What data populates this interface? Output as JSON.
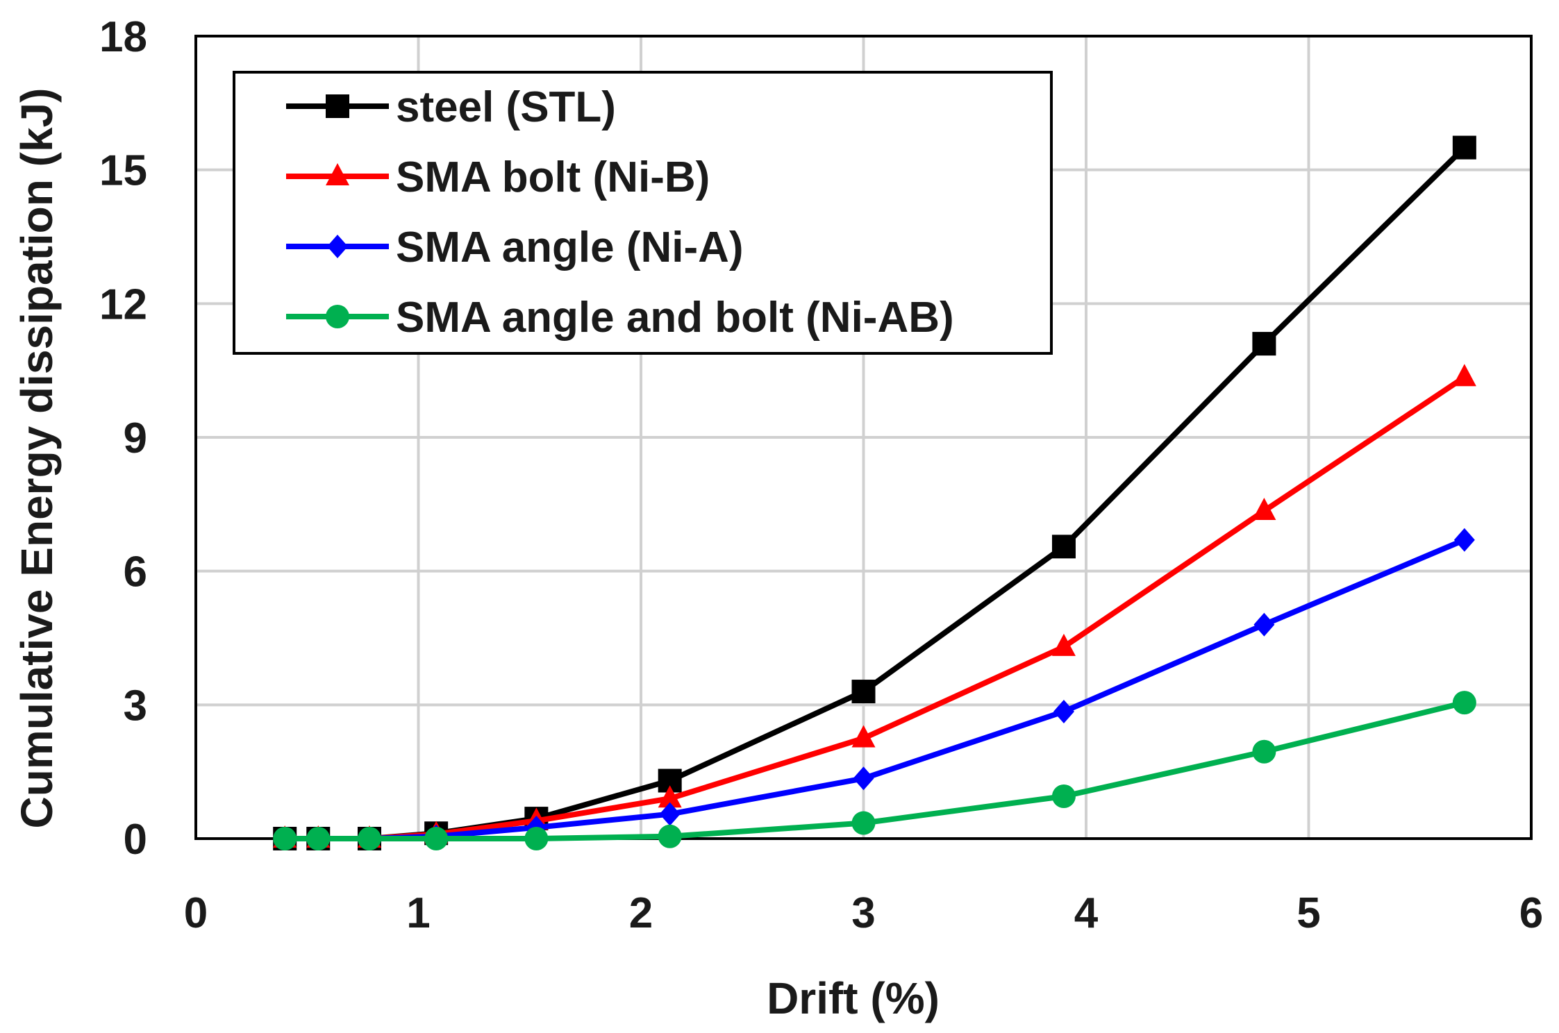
{
  "chart_data": {
    "type": "line",
    "title": "",
    "xlabel": "Drift (%)",
    "ylabel": "Cumulative Energy dissipation (kJ)",
    "xlim": [
      0,
      6
    ],
    "ylim": [
      0,
      18
    ],
    "xticks": [
      0,
      1,
      2,
      3,
      4,
      5,
      6
    ],
    "yticks": [
      0,
      3,
      6,
      9,
      12,
      15,
      18
    ],
    "grid": true,
    "legend_position": "top-left",
    "series": [
      {
        "name": "steel (STL)",
        "color": "#000000",
        "marker": "square",
        "x": [
          0.4,
          0.55,
          0.78,
          1.08,
          1.53,
          2.13,
          3.0,
          3.9,
          4.8,
          5.7
        ],
        "y": [
          0.0,
          0.0,
          0.0,
          0.12,
          0.45,
          1.3,
          3.3,
          6.55,
          11.1,
          15.5
        ]
      },
      {
        "name": "SMA bolt (Ni-B)",
        "color": "#ff0000",
        "marker": "triangle",
        "x": [
          0.4,
          0.55,
          0.78,
          1.08,
          1.53,
          2.13,
          3.0,
          3.9,
          4.8,
          5.7
        ],
        "y": [
          0.0,
          0.0,
          0.0,
          0.1,
          0.4,
          0.9,
          2.25,
          4.3,
          7.35,
          10.35
        ]
      },
      {
        "name": "SMA angle (Ni-A)",
        "color": "#0000ff",
        "marker": "diamond",
        "x": [
          0.4,
          0.55,
          0.78,
          1.08,
          1.53,
          2.13,
          3.0,
          3.9,
          4.8,
          5.7
        ],
        "y": [
          0.0,
          0.0,
          0.0,
          0.05,
          0.25,
          0.55,
          1.35,
          2.85,
          4.8,
          6.7
        ]
      },
      {
        "name": "SMA angle and bolt (Ni-AB)",
        "color": "#00b050",
        "marker": "circle",
        "x": [
          0.4,
          0.55,
          0.78,
          1.08,
          1.53,
          2.13,
          3.0,
          3.9,
          4.8,
          5.7
        ],
        "y": [
          0.0,
          0.0,
          0.0,
          0.0,
          0.0,
          0.05,
          0.35,
          0.95,
          1.95,
          3.05
        ]
      }
    ]
  }
}
